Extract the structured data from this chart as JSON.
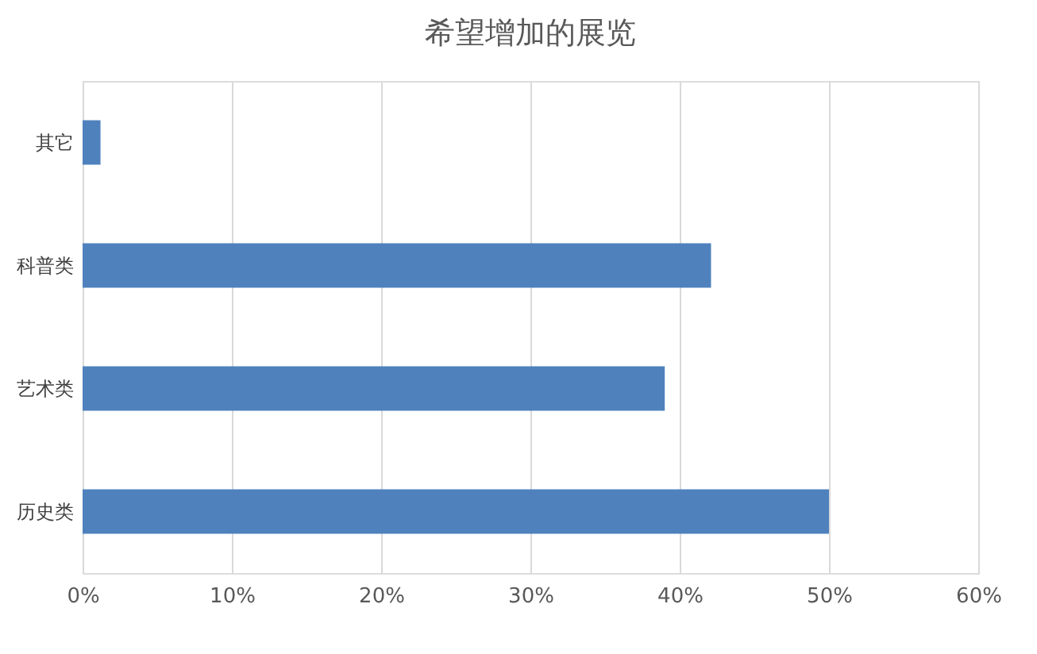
{
  "chart_data": {
    "type": "bar",
    "orientation": "horizontal",
    "title": "希望增加的展览",
    "categories": [
      "其它",
      "科普类",
      "艺术类",
      "历史类"
    ],
    "values": [
      1.2,
      42.1,
      39,
      50
    ],
    "color": "#4f81bd",
    "xlim": [
      0,
      60
    ],
    "xticks": [
      {
        "value": 0,
        "label": "0%"
      },
      {
        "value": 10,
        "label": "10%"
      },
      {
        "value": 20,
        "label": "20%"
      },
      {
        "value": 30,
        "label": "30%"
      },
      {
        "value": 40,
        "label": "40%"
      },
      {
        "value": 50,
        "label": "50%"
      },
      {
        "value": 60,
        "label": "60%"
      }
    ],
    "grid": "x"
  }
}
